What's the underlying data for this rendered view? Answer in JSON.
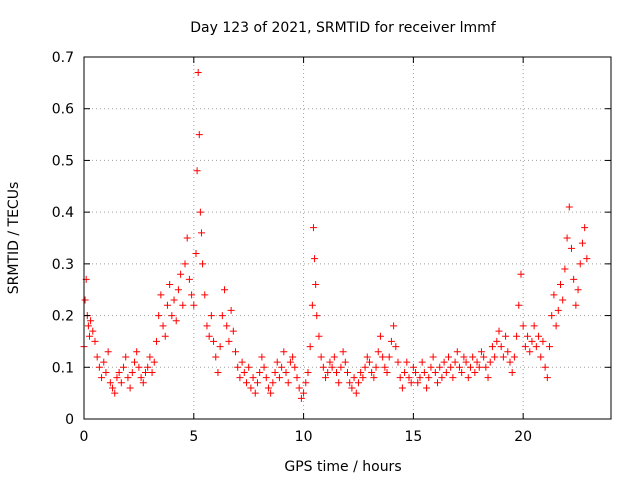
{
  "chart_data": {
    "type": "scatter",
    "title": "Day 123 of 2021, SRMTID for receiver lmmf",
    "xlabel": "GPS time / hours",
    "ylabel": "SRMTID / TECUs",
    "xlim": [
      0,
      24
    ],
    "ylim": [
      0,
      0.7
    ],
    "x_ticks": [
      0,
      5,
      10,
      15,
      20
    ],
    "y_ticks": [
      0,
      0.1,
      0.2,
      0.3,
      0.4,
      0.5,
      0.6,
      0.7
    ],
    "x_tick_labels": [
      "0",
      "5",
      "10",
      "15",
      "20"
    ],
    "y_tick_labels": [
      "0",
      "0.1",
      "0.2",
      "0.3",
      "0.4",
      "0.5",
      "0.6",
      "0.7"
    ],
    "grid": true,
    "marker": "+",
    "marker_color": "#ff0000",
    "series": [
      {
        "name": "SRMTID",
        "points": [
          [
            0.0,
            0.14
          ],
          [
            0.05,
            0.23
          ],
          [
            0.1,
            0.27
          ],
          [
            0.15,
            0.2
          ],
          [
            0.2,
            0.18
          ],
          [
            0.25,
            0.16
          ],
          [
            0.3,
            0.19
          ],
          [
            0.4,
            0.17
          ],
          [
            0.5,
            0.15
          ],
          [
            0.6,
            0.12
          ],
          [
            0.7,
            0.1
          ],
          [
            0.8,
            0.08
          ],
          [
            0.9,
            0.11
          ],
          [
            1.0,
            0.09
          ],
          [
            1.1,
            0.13
          ],
          [
            1.2,
            0.07
          ],
          [
            1.3,
            0.06
          ],
          [
            1.4,
            0.05
          ],
          [
            1.5,
            0.08
          ],
          [
            1.6,
            0.09
          ],
          [
            1.7,
            0.07
          ],
          [
            1.8,
            0.1
          ],
          [
            1.9,
            0.12
          ],
          [
            2.0,
            0.08
          ],
          [
            2.1,
            0.06
          ],
          [
            2.2,
            0.09
          ],
          [
            2.3,
            0.11
          ],
          [
            2.4,
            0.13
          ],
          [
            2.5,
            0.1
          ],
          [
            2.6,
            0.08
          ],
          [
            2.7,
            0.07
          ],
          [
            2.8,
            0.09
          ],
          [
            2.9,
            0.1
          ],
          [
            3.0,
            0.12
          ],
          [
            3.1,
            0.09
          ],
          [
            3.2,
            0.11
          ],
          [
            3.3,
            0.15
          ],
          [
            3.4,
            0.2
          ],
          [
            3.5,
            0.24
          ],
          [
            3.6,
            0.18
          ],
          [
            3.7,
            0.16
          ],
          [
            3.8,
            0.22
          ],
          [
            3.9,
            0.26
          ],
          [
            4.0,
            0.2
          ],
          [
            4.1,
            0.23
          ],
          [
            4.2,
            0.19
          ],
          [
            4.3,
            0.25
          ],
          [
            4.4,
            0.28
          ],
          [
            4.5,
            0.22
          ],
          [
            4.6,
            0.3
          ],
          [
            4.7,
            0.35
          ],
          [
            4.8,
            0.27
          ],
          [
            4.9,
            0.24
          ],
          [
            5.0,
            0.22
          ],
          [
            5.1,
            0.32
          ],
          [
            5.15,
            0.48
          ],
          [
            5.2,
            0.67
          ],
          [
            5.25,
            0.55
          ],
          [
            5.3,
            0.4
          ],
          [
            5.35,
            0.36
          ],
          [
            5.4,
            0.3
          ],
          [
            5.5,
            0.24
          ],
          [
            5.6,
            0.18
          ],
          [
            5.7,
            0.16
          ],
          [
            5.8,
            0.2
          ],
          [
            5.9,
            0.15
          ],
          [
            6.0,
            0.12
          ],
          [
            6.1,
            0.09
          ],
          [
            6.2,
            0.14
          ],
          [
            6.3,
            0.2
          ],
          [
            6.4,
            0.25
          ],
          [
            6.5,
            0.18
          ],
          [
            6.6,
            0.15
          ],
          [
            6.7,
            0.21
          ],
          [
            6.8,
            0.17
          ],
          [
            6.9,
            0.13
          ],
          [
            7.0,
            0.1
          ],
          [
            7.1,
            0.08
          ],
          [
            7.2,
            0.11
          ],
          [
            7.3,
            0.09
          ],
          [
            7.4,
            0.07
          ],
          [
            7.5,
            0.1
          ],
          [
            7.6,
            0.06
          ],
          [
            7.7,
            0.08
          ],
          [
            7.8,
            0.05
          ],
          [
            7.9,
            0.07
          ],
          [
            8.0,
            0.09
          ],
          [
            8.1,
            0.12
          ],
          [
            8.2,
            0.1
          ],
          [
            8.3,
            0.08
          ],
          [
            8.4,
            0.06
          ],
          [
            8.5,
            0.05
          ],
          [
            8.6,
            0.07
          ],
          [
            8.7,
            0.09
          ],
          [
            8.8,
            0.11
          ],
          [
            8.9,
            0.08
          ],
          [
            9.0,
            0.1
          ],
          [
            9.1,
            0.13
          ],
          [
            9.2,
            0.09
          ],
          [
            9.3,
            0.07
          ],
          [
            9.4,
            0.11
          ],
          [
            9.5,
            0.12
          ],
          [
            9.6,
            0.1
          ],
          [
            9.7,
            0.08
          ],
          [
            9.8,
            0.06
          ],
          [
            9.9,
            0.04
          ],
          [
            10.0,
            0.05
          ],
          [
            10.1,
            0.07
          ],
          [
            10.2,
            0.09
          ],
          [
            10.3,
            0.14
          ],
          [
            10.4,
            0.22
          ],
          [
            10.45,
            0.37
          ],
          [
            10.5,
            0.31
          ],
          [
            10.55,
            0.26
          ],
          [
            10.6,
            0.2
          ],
          [
            10.7,
            0.16
          ],
          [
            10.8,
            0.12
          ],
          [
            10.9,
            0.1
          ],
          [
            11.0,
            0.08
          ],
          [
            11.1,
            0.09
          ],
          [
            11.2,
            0.11
          ],
          [
            11.3,
            0.1
          ],
          [
            11.4,
            0.12
          ],
          [
            11.5,
            0.09
          ],
          [
            11.6,
            0.07
          ],
          [
            11.7,
            0.1
          ],
          [
            11.8,
            0.13
          ],
          [
            11.9,
            0.11
          ],
          [
            12.0,
            0.09
          ],
          [
            12.1,
            0.07
          ],
          [
            12.2,
            0.06
          ],
          [
            12.3,
            0.08
          ],
          [
            12.4,
            0.05
          ],
          [
            12.5,
            0.07
          ],
          [
            12.6,
            0.09
          ],
          [
            12.7,
            0.08
          ],
          [
            12.8,
            0.1
          ],
          [
            12.9,
            0.12
          ],
          [
            13.0,
            0.11
          ],
          [
            13.1,
            0.09
          ],
          [
            13.2,
            0.08
          ],
          [
            13.3,
            0.1
          ],
          [
            13.4,
            0.13
          ],
          [
            13.5,
            0.16
          ],
          [
            13.6,
            0.12
          ],
          [
            13.7,
            0.1
          ],
          [
            13.8,
            0.09
          ],
          [
            13.9,
            0.12
          ],
          [
            14.0,
            0.15
          ],
          [
            14.1,
            0.18
          ],
          [
            14.2,
            0.14
          ],
          [
            14.3,
            0.11
          ],
          [
            14.4,
            0.08
          ],
          [
            14.5,
            0.06
          ],
          [
            14.6,
            0.09
          ],
          [
            14.7,
            0.11
          ],
          [
            14.8,
            0.08
          ],
          [
            14.9,
            0.07
          ],
          [
            15.0,
            0.1
          ],
          [
            15.1,
            0.09
          ],
          [
            15.2,
            0.07
          ],
          [
            15.3,
            0.08
          ],
          [
            15.4,
            0.11
          ],
          [
            15.5,
            0.09
          ],
          [
            15.6,
            0.06
          ],
          [
            15.7,
            0.08
          ],
          [
            15.8,
            0.1
          ],
          [
            15.9,
            0.12
          ],
          [
            16.0,
            0.09
          ],
          [
            16.1,
            0.07
          ],
          [
            16.2,
            0.1
          ],
          [
            16.3,
            0.08
          ],
          [
            16.4,
            0.11
          ],
          [
            16.5,
            0.09
          ],
          [
            16.6,
            0.12
          ],
          [
            16.7,
            0.1
          ],
          [
            16.8,
            0.08
          ],
          [
            16.9,
            0.11
          ],
          [
            17.0,
            0.13
          ],
          [
            17.1,
            0.1
          ],
          [
            17.2,
            0.09
          ],
          [
            17.3,
            0.12
          ],
          [
            17.4,
            0.11
          ],
          [
            17.5,
            0.08
          ],
          [
            17.6,
            0.1
          ],
          [
            17.7,
            0.12
          ],
          [
            17.8,
            0.09
          ],
          [
            17.9,
            0.11
          ],
          [
            18.0,
            0.1
          ],
          [
            18.1,
            0.13
          ],
          [
            18.2,
            0.12
          ],
          [
            18.3,
            0.1
          ],
          [
            18.4,
            0.08
          ],
          [
            18.5,
            0.11
          ],
          [
            18.6,
            0.14
          ],
          [
            18.7,
            0.12
          ],
          [
            18.8,
            0.15
          ],
          [
            18.9,
            0.17
          ],
          [
            19.0,
            0.14
          ],
          [
            19.1,
            0.12
          ],
          [
            19.2,
            0.16
          ],
          [
            19.3,
            0.13
          ],
          [
            19.4,
            0.11
          ],
          [
            19.5,
            0.09
          ],
          [
            19.6,
            0.12
          ],
          [
            19.7,
            0.16
          ],
          [
            19.8,
            0.22
          ],
          [
            19.9,
            0.28
          ],
          [
            20.0,
            0.18
          ],
          [
            20.1,
            0.14
          ],
          [
            20.2,
            0.16
          ],
          [
            20.3,
            0.13
          ],
          [
            20.4,
            0.15
          ],
          [
            20.5,
            0.18
          ],
          [
            20.6,
            0.14
          ],
          [
            20.7,
            0.16
          ],
          [
            20.8,
            0.12
          ],
          [
            20.9,
            0.15
          ],
          [
            21.0,
            0.1
          ],
          [
            21.1,
            0.08
          ],
          [
            21.2,
            0.14
          ],
          [
            21.3,
            0.2
          ],
          [
            21.4,
            0.24
          ],
          [
            21.5,
            0.18
          ],
          [
            21.6,
            0.21
          ],
          [
            21.7,
            0.26
          ],
          [
            21.8,
            0.23
          ],
          [
            21.9,
            0.29
          ],
          [
            22.0,
            0.35
          ],
          [
            22.1,
            0.41
          ],
          [
            22.2,
            0.33
          ],
          [
            22.3,
            0.27
          ],
          [
            22.4,
            0.22
          ],
          [
            22.5,
            0.25
          ],
          [
            22.6,
            0.3
          ],
          [
            22.7,
            0.34
          ],
          [
            22.8,
            0.37
          ],
          [
            22.9,
            0.31
          ]
        ]
      }
    ]
  }
}
